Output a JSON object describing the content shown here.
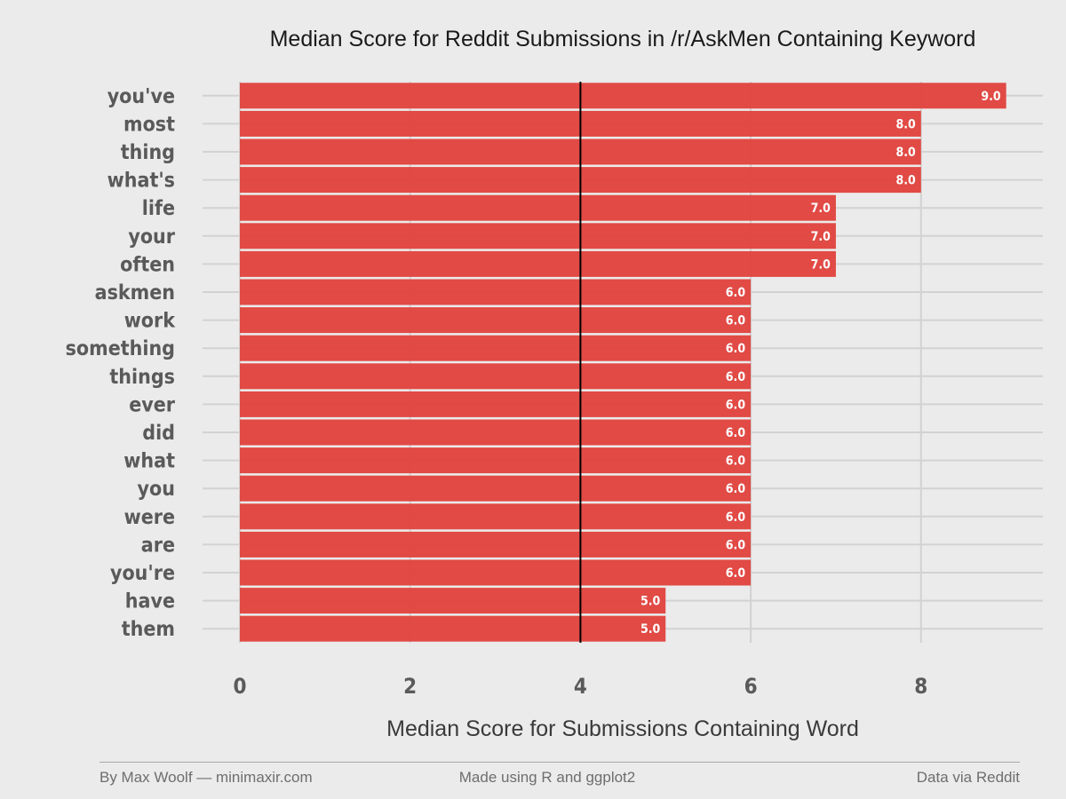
{
  "chart_data": {
    "type": "bar",
    "orientation": "horizontal",
    "title": "Median Score for Reddit Submissions in /r/AskMen Containing Keyword",
    "xlabel": "Median Score for Submissions Containing Word",
    "ylabel": "",
    "categories": [
      "you've",
      "most",
      "thing",
      "what's",
      "life",
      "your",
      "often",
      "askmen",
      "work",
      "something",
      "things",
      "ever",
      "did",
      "what",
      "you",
      "were",
      "are",
      "you're",
      "have",
      "them"
    ],
    "values": [
      9,
      8,
      8,
      8,
      7,
      7,
      7,
      6,
      6,
      6,
      6,
      6,
      6,
      6,
      6,
      6,
      6,
      6,
      5,
      5
    ],
    "value_labels": [
      "9.0",
      "8.0",
      "8.0",
      "8.0",
      "7.0",
      "7.0",
      "7.0",
      "6.0",
      "6.0",
      "6.0",
      "6.0",
      "6.0",
      "6.0",
      "6.0",
      "6.0",
      "6.0",
      "6.0",
      "6.0",
      "5.0",
      "5.0"
    ],
    "xlim": [
      0,
      9.3
    ],
    "xticks": [
      0,
      2,
      4,
      6,
      8
    ],
    "xtick_labels": [
      "0",
      "2",
      "4",
      "6",
      "8"
    ],
    "reference_line": 4,
    "grid": true,
    "bar_color": "#e0413c",
    "reference_line_color": "#000000"
  },
  "footer": {
    "left": "By Max Woolf — minimaxir.com",
    "center": "Made using R and ggplot2",
    "right": "Data via Reddit"
  }
}
